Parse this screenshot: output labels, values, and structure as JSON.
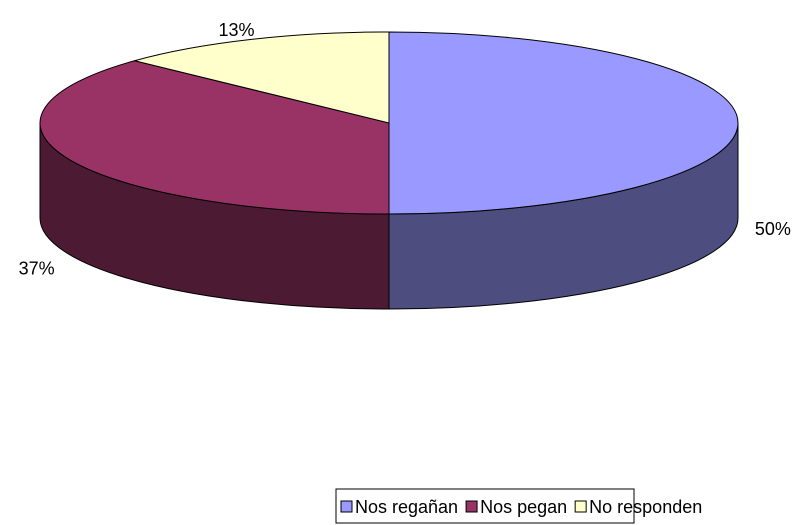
{
  "chart_data": {
    "type": "pie3d",
    "categories": [
      "Nos regañan",
      "Nos pegan",
      "No responden"
    ],
    "values": [
      50,
      37,
      13
    ],
    "value_labels": [
      "50%",
      "37%",
      "13%"
    ],
    "colors": [
      "#9999ff",
      "#993366",
      "#ffffcc"
    ],
    "legend": "bottom"
  }
}
